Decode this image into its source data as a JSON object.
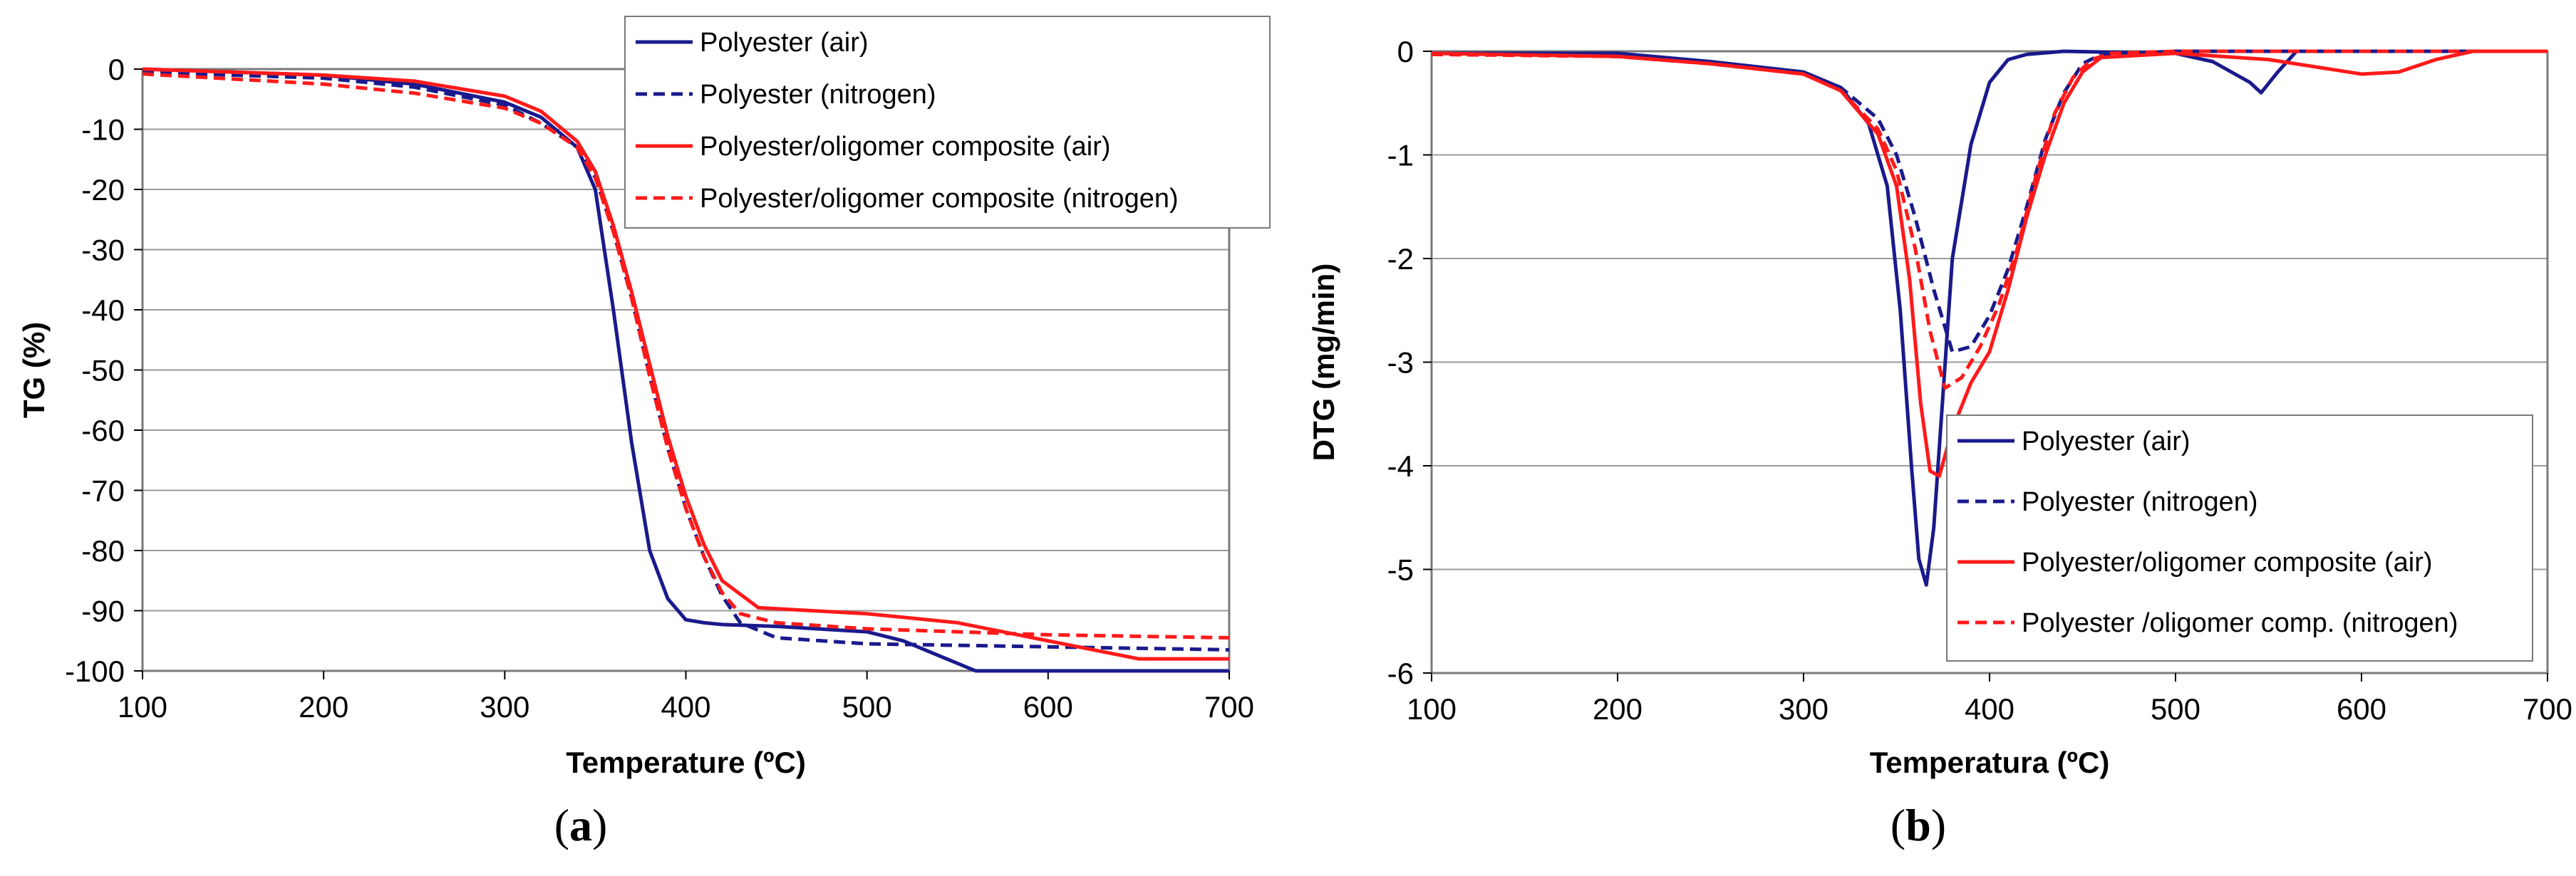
{
  "colors": {
    "navy": "#1a1a8c",
    "red": "#ff1a1a",
    "grid": "#9a9a9a",
    "frame": "#7a7a7a"
  },
  "chart_data": [
    {
      "type": "line",
      "id": "a",
      "caption_label": "a",
      "xlabel": "Temperature (ºC)",
      "ylabel": "TG (%)",
      "xlim": [
        100,
        700
      ],
      "ylim": [
        -100,
        0
      ],
      "xticks": [
        100,
        200,
        300,
        400,
        500,
        600,
        700
      ],
      "yticks": [
        0,
        -10,
        -20,
        -30,
        -40,
        -50,
        -60,
        -70,
        -80,
        -90,
        -100
      ],
      "grid": true,
      "legend_position": "top-right",
      "series": [
        {
          "name": "Polyester (air)",
          "color": "#1a1a8c",
          "dash": "solid",
          "x": [
            100,
            200,
            250,
            300,
            320,
            340,
            350,
            360,
            370,
            380,
            390,
            400,
            410,
            420,
            450,
            500,
            520,
            540,
            560,
            700
          ],
          "y": [
            0,
            -1,
            -2.5,
            -5.5,
            -8,
            -13,
            -20,
            -40,
            -62,
            -80,
            -88,
            -91.5,
            -92,
            -92.3,
            -92.6,
            -93.5,
            -95,
            -97.5,
            -100,
            -100
          ]
        },
        {
          "name": "Polyester (nitrogen)",
          "color": "#1a1a8c",
          "dash": "dashed",
          "x": [
            100,
            200,
            250,
            300,
            320,
            340,
            350,
            360,
            370,
            380,
            390,
            400,
            410,
            420,
            430,
            450,
            500,
            600,
            700
          ],
          "y": [
            -0.5,
            -1.5,
            -3,
            -6,
            -9,
            -13,
            -18,
            -27,
            -38,
            -51,
            -63,
            -73,
            -81,
            -87.5,
            -92,
            -94.5,
            -95.5,
            -96,
            -96.5
          ]
        },
        {
          "name": "Polyester/oligomer composite (air)",
          "color": "#ff1a1a",
          "dash": "solid",
          "x": [
            100,
            200,
            250,
            300,
            320,
            340,
            350,
            360,
            370,
            380,
            390,
            400,
            410,
            420,
            440,
            500,
            550,
            600,
            650,
            700
          ],
          "y": [
            0,
            -1,
            -2,
            -4.5,
            -7,
            -12,
            -17,
            -26,
            -37,
            -49,
            -61,
            -71,
            -79,
            -85,
            -89.5,
            -90.5,
            -92,
            -95,
            -98,
            -98
          ]
        },
        {
          "name": "Polyester/oligomer composite (nitrogen)",
          "color": "#ff1a1a",
          "dash": "dashed",
          "x": [
            100,
            200,
            250,
            300,
            320,
            340,
            350,
            360,
            370,
            380,
            390,
            400,
            410,
            420,
            430,
            450,
            500,
            600,
            700
          ],
          "y": [
            -0.8,
            -2.5,
            -4,
            -6.5,
            -9,
            -13,
            -18,
            -27,
            -38,
            -51,
            -63,
            -73,
            -81,
            -87,
            -90.5,
            -92,
            -93,
            -94,
            -94.5
          ]
        }
      ]
    },
    {
      "type": "line",
      "id": "b",
      "caption_label": "b",
      "xlabel": "Temperatura (ºC)",
      "ylabel": "DTG (mg/min)",
      "xlim": [
        100,
        700
      ],
      "ylim": [
        -6,
        0
      ],
      "xticks": [
        100,
        200,
        300,
        400,
        500,
        600,
        700
      ],
      "yticks": [
        0,
        -1,
        -2,
        -3,
        -4,
        -5,
        -6
      ],
      "grid": true,
      "legend_position": "bottom-right",
      "series": [
        {
          "name": "Polyester (air)",
          "color": "#1a1a8c",
          "dash": "solid",
          "x": [
            100,
            200,
            250,
            300,
            320,
            335,
            345,
            352,
            358,
            362,
            366,
            370,
            375,
            380,
            390,
            400,
            410,
            420,
            440,
            500,
            520,
            540,
            546,
            555,
            565,
            700
          ],
          "y": [
            -0.02,
            -0.02,
            -0.1,
            -0.2,
            -0.35,
            -0.7,
            -1.3,
            -2.5,
            -4.0,
            -4.9,
            -5.15,
            -4.6,
            -3.3,
            -2.0,
            -0.9,
            -0.3,
            -0.08,
            -0.03,
            0,
            -0.02,
            -0.1,
            -0.3,
            -0.4,
            -0.2,
            0,
            0
          ]
        },
        {
          "name": "Polyester (nitrogen)",
          "color": "#1a1a8c",
          "dash": "dashed",
          "x": [
            100,
            200,
            250,
            300,
            320,
            340,
            350,
            360,
            370,
            380,
            390,
            400,
            410,
            420,
            430,
            440,
            450,
            460,
            500,
            700
          ],
          "y": [
            -0.02,
            -0.05,
            -0.12,
            -0.22,
            -0.35,
            -0.65,
            -1.0,
            -1.6,
            -2.3,
            -2.9,
            -2.85,
            -2.55,
            -2.1,
            -1.5,
            -0.85,
            -0.4,
            -0.12,
            -0.03,
            0,
            0
          ]
        },
        {
          "name": "Polyester/oligomer composite (air)",
          "color": "#ff1a1a",
          "dash": "solid",
          "x": [
            100,
            200,
            250,
            300,
            320,
            340,
            350,
            357,
            363,
            368,
            373,
            380,
            390,
            400,
            410,
            420,
            430,
            440,
            450,
            460,
            500,
            550,
            600,
            620,
            640,
            660,
            700
          ],
          "y": [
            -0.02,
            -0.05,
            -0.12,
            -0.22,
            -0.38,
            -0.8,
            -1.3,
            -2.2,
            -3.4,
            -4.05,
            -4.1,
            -3.65,
            -3.2,
            -2.9,
            -2.3,
            -1.6,
            -1.0,
            -0.5,
            -0.2,
            -0.06,
            -0.02,
            -0.08,
            -0.22,
            -0.2,
            -0.08,
            0,
            0
          ]
        },
        {
          "name": "Polyester /oligomer comp. (nitrogen)",
          "color": "#ff1a1a",
          "dash": "dashed",
          "x": [
            100,
            200,
            250,
            300,
            320,
            340,
            350,
            360,
            368,
            376,
            385,
            395,
            405,
            415,
            425,
            435,
            445,
            455,
            465,
            500,
            700
          ],
          "y": [
            -0.03,
            -0.05,
            -0.12,
            -0.22,
            -0.38,
            -0.75,
            -1.15,
            -1.9,
            -2.7,
            -3.25,
            -3.15,
            -2.85,
            -2.45,
            -1.9,
            -1.2,
            -0.6,
            -0.25,
            -0.08,
            -0.02,
            0,
            0
          ]
        }
      ]
    }
  ]
}
